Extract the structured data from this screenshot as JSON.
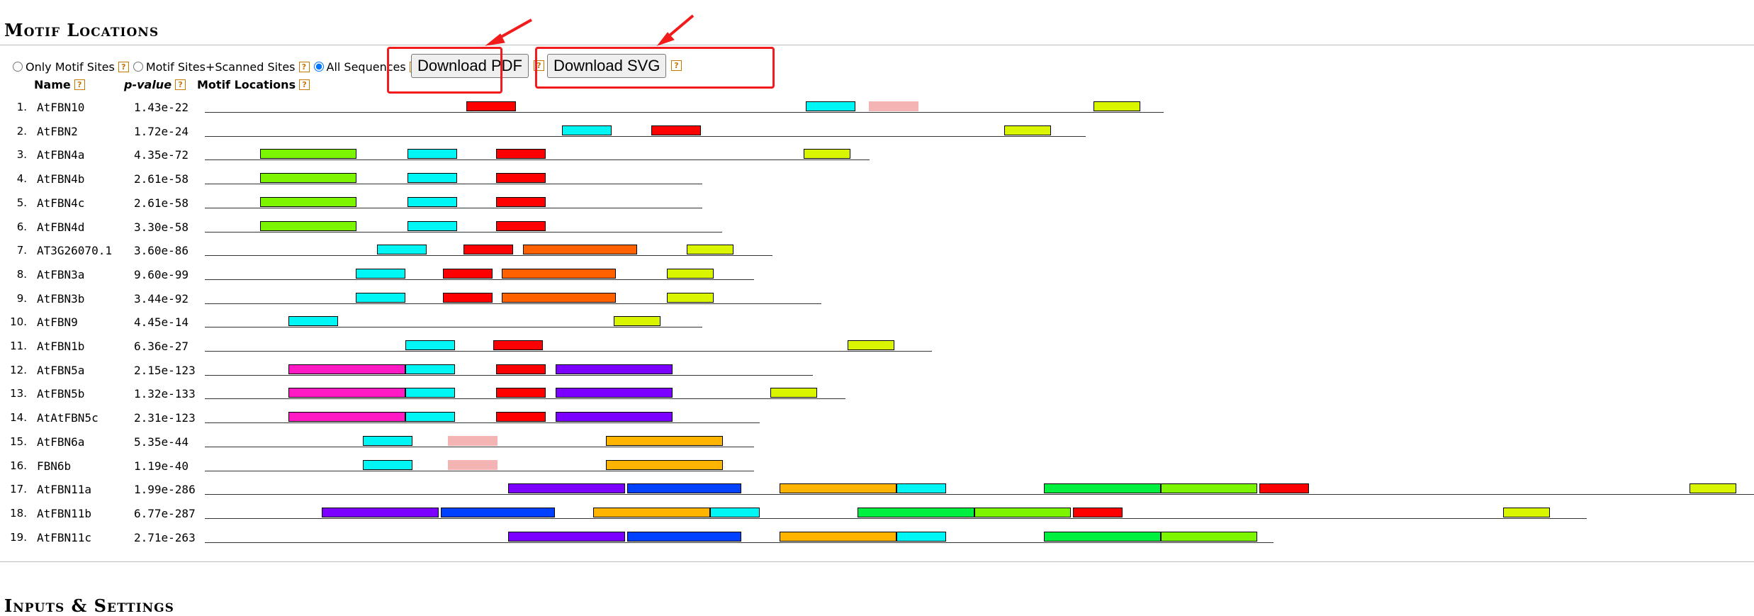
{
  "page": {
    "section_title": "Motif Locations",
    "next_section_title": "Inputs & Settings"
  },
  "controls": {
    "radio_options": [
      {
        "label": "Only Motif Sites",
        "checked": false
      },
      {
        "label": "Motif Sites+Scanned Sites",
        "checked": false
      },
      {
        "label": "All Sequences",
        "checked": true
      }
    ],
    "download_pdf_label": "Download PDF",
    "download_svg_label": "Download SVG",
    "help_glyph": "?"
  },
  "table_headers": {
    "name": "Name",
    "pvalue": "p-value",
    "motif_locations": "Motif Locations"
  },
  "colors": {
    "red": "#ff0000",
    "cyan": "#00f5f5",
    "pink": "#f5b4b4",
    "yellow": "#d9f500",
    "green": "#7cf500",
    "orange": "#ff6000",
    "magenta": "#ff1ac4",
    "purple": "#7b00ff",
    "blue": "#0040ff",
    "amber": "#ffb400",
    "brightgreen": "#00f040",
    "annotation_red": "#f21b1b"
  },
  "sequences": [
    {
      "index": "1.",
      "name": "AtFBN10",
      "pvalue": "1.43e-22",
      "length": 1353,
      "motifs": [
        {
          "start": 369,
          "end": 439,
          "color": "red"
        },
        {
          "start": 848,
          "end": 918,
          "color": "cyan"
        },
        {
          "start": 937,
          "end": 1007,
          "color": "pink"
        },
        {
          "start": 1254,
          "end": 1320,
          "color": "yellow"
        }
      ]
    },
    {
      "index": "2.",
      "name": "AtFBN2",
      "pvalue": "1.72e-24",
      "length": 1243,
      "motifs": [
        {
          "start": 504,
          "end": 574,
          "color": "cyan"
        },
        {
          "start": 630,
          "end": 700,
          "color": "red"
        },
        {
          "start": 1128,
          "end": 1194,
          "color": "yellow"
        }
      ]
    },
    {
      "index": "3.",
      "name": "AtFBN4a",
      "pvalue": "4.35e-72",
      "length": 938,
      "motifs": [
        {
          "start": 78,
          "end": 214,
          "color": "green"
        },
        {
          "start": 286,
          "end": 356,
          "color": "cyan"
        },
        {
          "start": 411,
          "end": 481,
          "color": "red"
        },
        {
          "start": 845,
          "end": 911,
          "color": "yellow"
        }
      ]
    },
    {
      "index": "4.",
      "name": "AtFBN4b",
      "pvalue": "2.61e-58",
      "length": 702,
      "motifs": [
        {
          "start": 78,
          "end": 214,
          "color": "green"
        },
        {
          "start": 286,
          "end": 356,
          "color": "cyan"
        },
        {
          "start": 411,
          "end": 481,
          "color": "red"
        }
      ]
    },
    {
      "index": "5.",
      "name": "AtFBN4c",
      "pvalue": "2.61e-58",
      "length": 702,
      "motifs": [
        {
          "start": 78,
          "end": 214,
          "color": "green"
        },
        {
          "start": 286,
          "end": 356,
          "color": "cyan"
        },
        {
          "start": 411,
          "end": 481,
          "color": "red"
        }
      ]
    },
    {
      "index": "6.",
      "name": "AtFBN4d",
      "pvalue": "3.30e-58",
      "length": 730,
      "motifs": [
        {
          "start": 78,
          "end": 214,
          "color": "green"
        },
        {
          "start": 286,
          "end": 356,
          "color": "cyan"
        },
        {
          "start": 411,
          "end": 481,
          "color": "red"
        }
      ]
    },
    {
      "index": "7.",
      "name": "AT3G26070.1",
      "pvalue": "3.60e-86",
      "length": 801,
      "motifs": [
        {
          "start": 243,
          "end": 313,
          "color": "cyan"
        },
        {
          "start": 365,
          "end": 435,
          "color": "red"
        },
        {
          "start": 449,
          "end": 610,
          "color": "orange"
        },
        {
          "start": 680,
          "end": 746,
          "color": "yellow"
        }
      ]
    },
    {
      "index": "8.",
      "name": "AtFBN3a",
      "pvalue": "9.60e-99",
      "length": 775,
      "motifs": [
        {
          "start": 213,
          "end": 283,
          "color": "cyan"
        },
        {
          "start": 336,
          "end": 406,
          "color": "red"
        },
        {
          "start": 419,
          "end": 580,
          "color": "orange"
        },
        {
          "start": 652,
          "end": 718,
          "color": "yellow"
        }
      ]
    },
    {
      "index": "9.",
      "name": "AtFBN3b",
      "pvalue": "3.44e-92",
      "length": 870,
      "motifs": [
        {
          "start": 213,
          "end": 283,
          "color": "cyan"
        },
        {
          "start": 336,
          "end": 406,
          "color": "red"
        },
        {
          "start": 419,
          "end": 580,
          "color": "orange"
        },
        {
          "start": 652,
          "end": 718,
          "color": "yellow"
        }
      ]
    },
    {
      "index": "10.",
      "name": "AtFBN9",
      "pvalue": "4.45e-14",
      "length": 702,
      "motifs": [
        {
          "start": 118,
          "end": 188,
          "color": "cyan"
        },
        {
          "start": 577,
          "end": 643,
          "color": "yellow"
        }
      ]
    },
    {
      "index": "11.",
      "name": "AtFBN1b",
      "pvalue": "6.36e-27",
      "length": 1026,
      "motifs": [
        {
          "start": 283,
          "end": 353,
          "color": "cyan"
        },
        {
          "start": 407,
          "end": 477,
          "color": "red"
        },
        {
          "start": 907,
          "end": 973,
          "color": "yellow"
        }
      ]
    },
    {
      "index": "12.",
      "name": "AtFBN5a",
      "pvalue": "2.15e-123",
      "length": 858,
      "motifs": [
        {
          "start": 118,
          "end": 283,
          "color": "magenta"
        },
        {
          "start": 283,
          "end": 353,
          "color": "cyan"
        },
        {
          "start": 411,
          "end": 481,
          "color": "red"
        },
        {
          "start": 495,
          "end": 660,
          "color": "purple"
        }
      ]
    },
    {
      "index": "13.",
      "name": "AtFBN5b",
      "pvalue": "1.32e-133",
      "length": 904,
      "motifs": [
        {
          "start": 118,
          "end": 283,
          "color": "magenta"
        },
        {
          "start": 283,
          "end": 353,
          "color": "cyan"
        },
        {
          "start": 411,
          "end": 481,
          "color": "red"
        },
        {
          "start": 495,
          "end": 660,
          "color": "purple"
        },
        {
          "start": 798,
          "end": 864,
          "color": "yellow"
        }
      ]
    },
    {
      "index": "14.",
      "name": "AtAtFBN5c",
      "pvalue": "2.31e-123",
      "length": 783,
      "motifs": [
        {
          "start": 118,
          "end": 283,
          "color": "magenta"
        },
        {
          "start": 283,
          "end": 353,
          "color": "cyan"
        },
        {
          "start": 411,
          "end": 481,
          "color": "red"
        },
        {
          "start": 495,
          "end": 660,
          "color": "purple"
        }
      ]
    },
    {
      "index": "15.",
      "name": "AtFBN6a",
      "pvalue": "5.35e-44",
      "length": 775,
      "motifs": [
        {
          "start": 223,
          "end": 293,
          "color": "cyan"
        },
        {
          "start": 343,
          "end": 413,
          "color": "pink"
        },
        {
          "start": 566,
          "end": 731,
          "color": "amber"
        }
      ]
    },
    {
      "index": "16.",
      "name": "FBN6b",
      "pvalue": "1.19e-40",
      "length": 775,
      "motifs": [
        {
          "start": 223,
          "end": 293,
          "color": "cyan"
        },
        {
          "start": 343,
          "end": 413,
          "color": "pink"
        },
        {
          "start": 566,
          "end": 731,
          "color": "amber"
        }
      ]
    },
    {
      "index": "17.",
      "name": "AtFBN11a",
      "pvalue": "1.99e-286",
      "length": 2186,
      "motifs": [
        {
          "start": 428,
          "end": 593,
          "color": "purple"
        },
        {
          "start": 596,
          "end": 757,
          "color": "blue"
        },
        {
          "start": 811,
          "end": 976,
          "color": "amber"
        },
        {
          "start": 976,
          "end": 1046,
          "color": "cyan"
        },
        {
          "start": 1184,
          "end": 1349,
          "color": "brightgreen"
        },
        {
          "start": 1349,
          "end": 1485,
          "color": "green"
        },
        {
          "start": 1488,
          "end": 1558,
          "color": "red"
        },
        {
          "start": 2095,
          "end": 2161,
          "color": "yellow"
        }
      ]
    },
    {
      "index": "18.",
      "name": "AtFBN11b",
      "pvalue": "6.77e-287",
      "length": 1950,
      "motifs": [
        {
          "start": 165,
          "end": 330,
          "color": "purple"
        },
        {
          "start": 333,
          "end": 494,
          "color": "blue"
        },
        {
          "start": 548,
          "end": 713,
          "color": "amber"
        },
        {
          "start": 713,
          "end": 783,
          "color": "cyan"
        },
        {
          "start": 921,
          "end": 1086,
          "color": "brightgreen"
        },
        {
          "start": 1086,
          "end": 1222,
          "color": "green"
        },
        {
          "start": 1225,
          "end": 1295,
          "color": "red"
        },
        {
          "start": 1832,
          "end": 1898,
          "color": "yellow"
        }
      ]
    },
    {
      "index": "19.",
      "name": "AtFBN11c",
      "pvalue": "2.71e-263",
      "length": 1508,
      "motifs": [
        {
          "start": 428,
          "end": 593,
          "color": "purple"
        },
        {
          "start": 596,
          "end": 757,
          "color": "blue"
        },
        {
          "start": 811,
          "end": 976,
          "color": "amber"
        },
        {
          "start": 976,
          "end": 1046,
          "color": "cyan"
        },
        {
          "start": 1184,
          "end": 1349,
          "color": "brightgreen"
        },
        {
          "start": 1349,
          "end": 1485,
          "color": "green"
        }
      ]
    }
  ]
}
